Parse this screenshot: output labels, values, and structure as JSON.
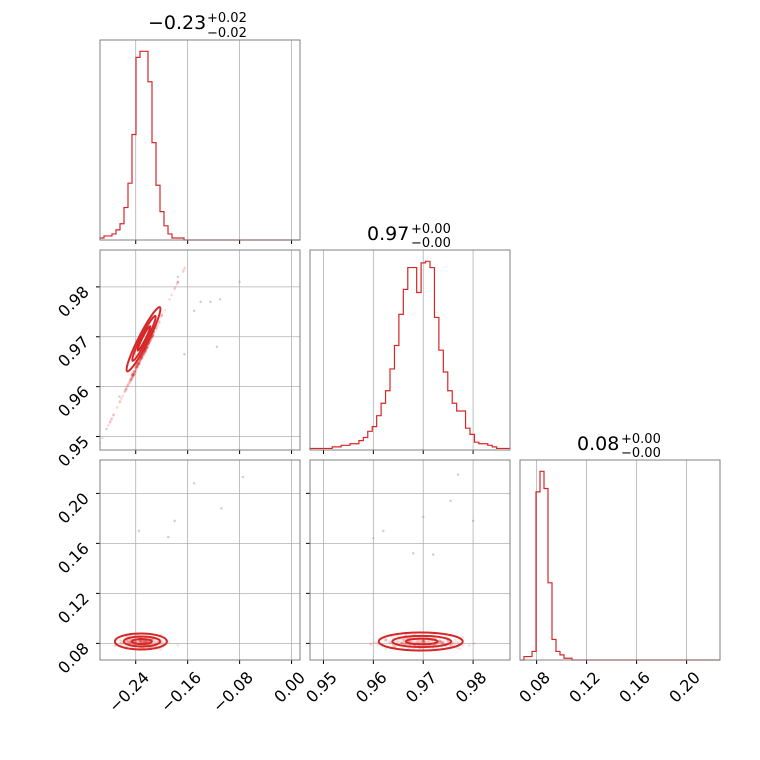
{
  "colors": {
    "accent": "#d62728",
    "frame": "#808080",
    "grid": "#b0b0b0"
  },
  "chart_data": {
    "type": "corner",
    "grid": true,
    "params": [
      {
        "median": -0.23,
        "err_plus": 0.02,
        "err_minus": 0.02,
        "title_main": "−0.23",
        "title_plus": "+0.02",
        "title_minus": "−0.02",
        "range": [
          -0.295,
          0.013
        ],
        "ticks": [
          -0.24,
          -0.16,
          -0.08,
          0.0
        ],
        "tick_labels": [
          "−0.24",
          "−0.16",
          "−0.08",
          "0.00"
        ]
      },
      {
        "median": 0.97,
        "err_plus": 0.0,
        "err_minus": 0.0,
        "title_main": "0.97",
        "title_plus": "+0.00",
        "title_minus": "−0.00",
        "range": [
          0.9473,
          0.9874
        ],
        "ticks": [
          0.95,
          0.96,
          0.97,
          0.98
        ],
        "tick_labels": [
          "0.95",
          "0.96",
          "0.97",
          "0.98"
        ]
      },
      {
        "median": 0.08,
        "err_plus": 0.0,
        "err_minus": 0.0,
        "title_main": "0.08",
        "title_plus": "+0.00",
        "title_minus": "−0.00",
        "range": [
          0.0667,
          0.2267
        ],
        "ticks": [
          0.08,
          0.12,
          0.16,
          0.2
        ],
        "tick_labels": [
          "0.08",
          "0.12",
          "0.16",
          "0.20"
        ]
      }
    ],
    "histograms": [
      {
        "param": 0,
        "bins": [
          -0.295,
          0.013
        ],
        "heights": [
          1,
          2,
          2,
          3,
          5,
          8,
          16,
          28,
          52,
          90,
          93,
          93,
          78,
          48,
          27,
          14,
          7,
          3,
          1,
          1,
          1,
          0,
          0,
          0,
          0,
          0,
          0,
          0,
          0,
          0,
          0,
          0,
          0,
          0,
          0,
          0,
          0,
          0,
          0,
          0,
          0,
          0,
          0,
          0,
          0,
          0,
          0,
          0,
          0,
          0
        ]
      },
      {
        "param": 1,
        "bins": [
          0.9473,
          0.9874
        ],
        "heights": [
          1,
          1,
          1,
          1,
          1,
          2,
          2,
          3,
          3,
          4,
          4,
          6,
          8,
          12,
          15,
          22,
          30,
          38,
          52,
          67,
          87,
          103,
          117,
          117,
          101,
          120,
          121,
          117,
          85,
          64,
          50,
          38,
          30,
          25,
          25,
          14,
          10,
          5,
          4,
          4,
          3,
          2,
          1,
          1,
          1
        ]
      },
      {
        "param": 2,
        "bins": [
          0.0667,
          0.2267
        ],
        "heights": [
          0,
          2,
          2,
          5,
          98,
          110,
          100,
          45,
          12,
          5,
          3,
          1,
          1,
          0,
          0,
          0,
          0,
          0,
          0,
          0,
          0,
          0,
          0,
          0,
          0,
          0,
          0,
          0,
          0,
          0,
          0,
          0,
          0,
          0,
          0,
          0,
          0,
          0,
          0,
          0,
          0,
          0,
          0,
          0,
          0,
          0,
          0,
          0,
          0,
          0
        ]
      }
    ],
    "scatter": [
      {
        "x_param": 0,
        "y_param": 1,
        "outliers": [
          [
            -0.14,
            0.977
          ],
          [
            -0.11,
            0.9775
          ],
          [
            -0.115,
            0.968
          ],
          [
            -0.165,
            0.9665
          ],
          [
            -0.15,
            0.9752
          ],
          [
            -0.125,
            0.977
          ],
          [
            -0.08,
            0.981
          ],
          [
            -0.175,
            0.982
          ],
          [
            -0.265,
            0.958
          ],
          [
            -0.285,
            0.9515
          ]
        ],
        "trend": [
          -0.3,
          0.9474,
          -0.16,
          0.985
        ]
      },
      {
        "x_param": 0,
        "y_param": 2,
        "outliers": [
          [
            -0.15,
            0.208
          ],
          [
            -0.075,
            0.213
          ],
          [
            -0.18,
            0.178
          ],
          [
            -0.108,
            0.188
          ],
          [
            -0.235,
            0.17
          ],
          [
            -0.19,
            0.165
          ]
        ]
      },
      {
        "x_param": 1,
        "y_param": 2,
        "outliers": [
          [
            0.977,
            0.215
          ],
          [
            0.9755,
            0.194
          ],
          [
            0.97,
            0.181
          ],
          [
            0.962,
            0.17
          ],
          [
            0.96,
            0.164
          ],
          [
            0.98,
            0.178
          ],
          [
            0.968,
            0.152
          ],
          [
            0.972,
            0.151
          ]
        ]
      }
    ]
  }
}
